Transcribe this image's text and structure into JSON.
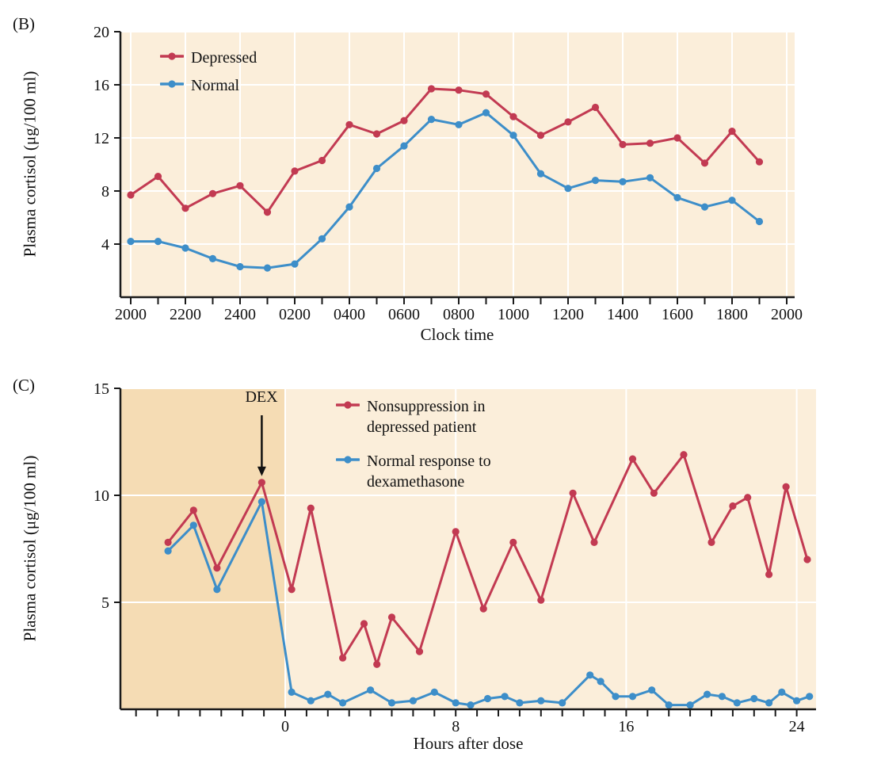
{
  "panels": {
    "b": {
      "label": "(B)",
      "ylabel": "Plasma cortisol (μg/100 ml)",
      "xlabel": "Clock time"
    },
    "c": {
      "label": "(C)",
      "ylabel": "Plasma cortisol (μg/100 ml)",
      "xlabel": "Hours after dose"
    }
  },
  "colors": {
    "depressed": "#c23a52",
    "normal": "#3d8ec9",
    "plot_bg": "#fbeeda",
    "predose_bg": "#f5dcb4",
    "grid": "#ffffff",
    "axis": "#1a1a1a"
  },
  "chart_data": [
    {
      "type": "line",
      "panel": "B",
      "title": "",
      "xlabel": "Clock time",
      "ylabel": "Plasma cortisol (μg/100 ml)",
      "categories": [
        "2000",
        "2100",
        "2200",
        "2300",
        "2400",
        "0100",
        "0200",
        "0300",
        "0400",
        "0500",
        "0600",
        "0700",
        "0800",
        "0900",
        "1000",
        "1100",
        "1200",
        "1300",
        "1400",
        "1500",
        "1600",
        "1700",
        "1800",
        "1900"
      ],
      "x_tick_labels": [
        "2000",
        "2200",
        "2400",
        "0200",
        "0400",
        "0600",
        "0800",
        "1000",
        "1200",
        "1400",
        "1600",
        "1800",
        "2000"
      ],
      "ylim": [
        0,
        20
      ],
      "yticks": [
        4,
        8,
        12,
        16,
        20
      ],
      "grid": true,
      "legend_position": "top-left",
      "series": [
        {
          "name": "Depressed",
          "color": "#c23a52",
          "values": [
            7.7,
            9.1,
            6.7,
            7.8,
            8.4,
            6.4,
            9.5,
            10.3,
            13.0,
            12.3,
            13.3,
            15.7,
            15.6,
            15.3,
            13.6,
            12.2,
            13.2,
            14.3,
            11.5,
            11.6,
            12.0,
            10.1,
            12.5,
            10.2
          ]
        },
        {
          "name": "Normal",
          "color": "#3d8ec9",
          "values": [
            4.2,
            4.2,
            3.7,
            2.9,
            2.3,
            2.2,
            2.5,
            4.4,
            6.8,
            9.7,
            11.4,
            13.4,
            13.0,
            13.9,
            12.2,
            9.3,
            8.2,
            8.8,
            8.7,
            9.0,
            7.5,
            6.8,
            7.3,
            5.7
          ]
        }
      ]
    },
    {
      "type": "line",
      "panel": "C",
      "title": "",
      "xlabel": "Hours after dose",
      "ylabel": "Plasma cortisol (μg/100 ml)",
      "xlim": [
        -7.7,
        24.9
      ],
      "xticks": [
        0,
        8,
        16,
        24
      ],
      "ylim": [
        0,
        15
      ],
      "yticks": [
        5,
        10,
        15
      ],
      "grid": true,
      "legend_position": "top-center",
      "annotation": {
        "text": "DEX",
        "x": -1.1,
        "arrow_to_y": 10.6
      },
      "shaded_region": {
        "x_from": -7.7,
        "x_to": 0,
        "color": "#f5dcb4"
      },
      "series": [
        {
          "name": "Nonsuppression in depressed patient",
          "color": "#c23a52",
          "x": [
            -5.5,
            -4.3,
            -3.2,
            -1.1,
            0.3,
            1.2,
            2.7,
            3.7,
            4.3,
            5.0,
            6.3,
            8.0,
            9.3,
            10.7,
            12.0,
            13.5,
            14.5,
            16.3,
            17.3,
            18.7,
            20.0,
            21.0,
            21.7,
            22.7,
            23.5,
            24.5
          ],
          "y": [
            7.8,
            9.3,
            6.6,
            10.6,
            5.6,
            9.4,
            2.4,
            4.0,
            2.1,
            4.3,
            2.7,
            8.3,
            4.7,
            7.8,
            5.1,
            10.1,
            7.8,
            11.7,
            10.1,
            11.9,
            7.8,
            9.5,
            9.9,
            6.3,
            10.4,
            7.0
          ]
        },
        {
          "name": "Normal response to dexamethasone",
          "color": "#3d8ec9",
          "x": [
            -5.5,
            -4.3,
            -3.2,
            -1.1,
            0.3,
            1.2,
            2.0,
            2.7,
            4.0,
            5.0,
            6.0,
            7.0,
            8.0,
            8.7,
            9.5,
            10.3,
            11.0,
            12.0,
            13.0,
            14.3,
            14.8,
            15.5,
            16.3,
            17.2,
            18.0,
            19.0,
            19.8,
            20.5,
            21.2,
            22.0,
            22.7,
            23.3,
            24.0,
            24.6
          ],
          "y": [
            7.4,
            8.6,
            5.6,
            9.7,
            0.8,
            0.4,
            0.7,
            0.3,
            0.9,
            0.3,
            0.4,
            0.8,
            0.3,
            0.2,
            0.5,
            0.6,
            0.3,
            0.4,
            0.3,
            1.6,
            1.3,
            0.6,
            0.6,
            0.9,
            0.2,
            0.2,
            0.7,
            0.6,
            0.3,
            0.5,
            0.3,
            0.8,
            0.4,
            0.6
          ]
        }
      ]
    }
  ]
}
